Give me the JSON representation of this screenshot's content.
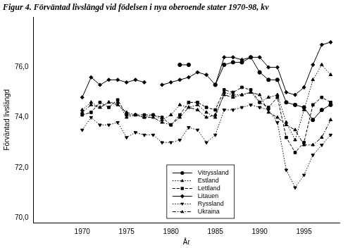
{
  "chart_data": {
    "type": "line",
    "title": "Figur 4. Förväntad livslängd vid födelsen i nya oberoende stater 1970-98, kv",
    "x_label": "År",
    "y_label": "Förväntad livslängd",
    "x": [
      1970,
      1971,
      1972,
      1973,
      1974,
      1975,
      1976,
      1977,
      1978,
      1979,
      1980,
      1981,
      1982,
      1983,
      1984,
      1985,
      1986,
      1987,
      1988,
      1989,
      1990,
      1991,
      1992,
      1993,
      1994,
      1995,
      1996,
      1997,
      1998
    ],
    "series": [
      {
        "name": "Vitryssland",
        "color": "#000000",
        "marker": "circle",
        "line_style": "solid",
        "values": [
          null,
          null,
          null,
          null,
          null,
          null,
          null,
          null,
          null,
          null,
          null,
          76.1,
          76.1,
          null,
          null,
          75.3,
          76.1,
          76.2,
          76.2,
          76.4,
          75.8,
          75.5,
          75.5,
          74.6,
          74.5,
          74.4,
          73.9,
          74.3,
          74.5
        ]
      },
      {
        "name": "Estland",
        "color": "#000000",
        "marker": "triangle",
        "line_style": "dotted",
        "values": [
          74.3,
          74.6,
          74.4,
          74.6,
          74.6,
          74.0,
          74.1,
          74.0,
          74.1,
          73.9,
          74.1,
          74.5,
          74.4,
          74.5,
          74.2,
          74.0,
          75.0,
          74.9,
          74.9,
          75.0,
          74.6,
          74.8,
          74.9,
          73.8,
          73.1,
          74.3,
          75.5,
          76.1,
          75.7
        ]
      },
      {
        "name": "Lettland",
        "color": "#000000",
        "marker": "square",
        "line_style": "dashed",
        "values": [
          74.1,
          74.2,
          74.6,
          74.4,
          74.7,
          74.1,
          74.1,
          74.1,
          74.1,
          74.0,
          73.7,
          74.1,
          74.6,
          74.6,
          74.4,
          74.3,
          75.1,
          75.0,
          75.2,
          75.1,
          74.6,
          74.4,
          74.8,
          73.2,
          72.6,
          73.0,
          74.5,
          74.8,
          74.6
        ]
      },
      {
        "name": "Litauen",
        "color": "#000000",
        "marker": "diamond",
        "line_style": "solid",
        "values": [
          74.8,
          75.6,
          75.3,
          75.5,
          75.5,
          75.4,
          75.5,
          75.4,
          null,
          75.3,
          75.4,
          75.5,
          75.6,
          75.8,
          75.7,
          75.3,
          76.4,
          76.4,
          76.3,
          76.4,
          76.4,
          76.0,
          76.0,
          75.0,
          74.9,
          75.2,
          76.1,
          76.9,
          77.0
        ]
      },
      {
        "name": "Ryssland",
        "color": "#000000",
        "marker": "triangle-down",
        "line_style": "dotted",
        "values": [
          73.5,
          74.0,
          73.7,
          73.7,
          73.8,
          73.2,
          73.4,
          73.3,
          73.3,
          73.0,
          73.0,
          73.1,
          73.6,
          73.5,
          73.0,
          73.3,
          74.3,
          74.3,
          74.4,
          74.5,
          74.4,
          74.3,
          73.8,
          71.9,
          71.2,
          71.7,
          72.5,
          72.9,
          73.3
        ]
      },
      {
        "name": "Ukraina",
        "color": "#000000",
        "marker": "triangle",
        "line_style": "dashdot",
        "values": [
          74.2,
          74.5,
          74.4,
          74.6,
          74.5,
          74.2,
          74.1,
          74.0,
          74.0,
          73.8,
          73.7,
          74.0,
          74.4,
          74.3,
          74.0,
          74.1,
          74.9,
          74.8,
          74.9,
          75.0,
          74.9,
          74.2,
          74.0,
          73.7,
          73.5,
          72.9,
          72.9,
          73.2,
          73.9
        ]
      }
    ],
    "xlim": [
      1964.5,
      1999
    ],
    "xticks": [
      1970,
      1975,
      1980,
      1985,
      1990,
      1995
    ],
    "ylim": [
      69.8,
      78.0
    ],
    "yticks": [
      {
        "value": 70,
        "label": "70,0"
      },
      {
        "value": 72,
        "label": "72,0"
      },
      {
        "value": 74,
        "label": "74,0"
      },
      {
        "value": 76,
        "label": "76,0"
      }
    ],
    "grid": false,
    "legend": "lower center"
  }
}
